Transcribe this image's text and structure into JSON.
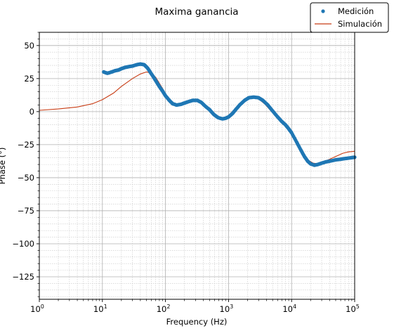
{
  "chart_data": {
    "type": "line",
    "title": "Maxima ganancia",
    "xlabel": "Frequency (Hz)",
    "ylabel": "Phase (°)",
    "xscale": "log",
    "xlim": [
      1,
      100000
    ],
    "ylim": [
      -142,
      60
    ],
    "yticks": [
      50,
      25,
      0,
      -25,
      -50,
      -75,
      -100,
      -125
    ],
    "ytick_labels": [
      "50",
      "25",
      "0",
      "−25",
      "−50",
      "−75",
      "−100",
      "−125"
    ],
    "xtick_labels": [
      {
        "base": "10",
        "exp": "0"
      },
      {
        "base": "10",
        "exp": "1"
      },
      {
        "base": "10",
        "exp": "2"
      },
      {
        "base": "10",
        "exp": "3"
      },
      {
        "base": "10",
        "exp": "4"
      },
      {
        "base": "10",
        "exp": "5"
      }
    ],
    "grid": true,
    "legend_position": "top-right",
    "series": [
      {
        "name": "Medición",
        "style": "markers",
        "color": "#1f77b4",
        "points": [
          [
            10.5,
            30.0
          ],
          [
            12,
            29.0
          ],
          [
            14,
            30.0
          ],
          [
            16,
            31.0
          ],
          [
            18,
            31.5
          ],
          [
            20,
            32.5
          ],
          [
            23,
            33.5
          ],
          [
            26,
            34.0
          ],
          [
            30,
            34.5
          ],
          [
            35,
            35.5
          ],
          [
            40,
            36.0
          ],
          [
            46,
            35.5
          ],
          [
            52,
            33.0
          ],
          [
            58,
            29.5
          ],
          [
            65,
            26.0
          ],
          [
            72,
            22.5
          ],
          [
            80,
            19.0
          ],
          [
            90,
            15.5
          ],
          [
            100,
            12.0
          ],
          [
            115,
            8.5
          ],
          [
            130,
            6.0
          ],
          [
            150,
            5.0
          ],
          [
            175,
            5.5
          ],
          [
            200,
            6.5
          ],
          [
            230,
            7.5
          ],
          [
            270,
            8.5
          ],
          [
            320,
            8.5
          ],
          [
            370,
            7.0
          ],
          [
            430,
            4.0
          ],
          [
            500,
            1.5
          ],
          [
            580,
            -2.0
          ],
          [
            680,
            -4.5
          ],
          [
            800,
            -5.5
          ],
          [
            900,
            -5.0
          ],
          [
            1000,
            -4.0
          ],
          [
            1150,
            -1.5
          ],
          [
            1300,
            1.5
          ],
          [
            1500,
            5.0
          ],
          [
            1800,
            8.5
          ],
          [
            2100,
            10.5
          ],
          [
            2500,
            11.0
          ],
          [
            3000,
            10.5
          ],
          [
            3500,
            8.5
          ],
          [
            4200,
            5.0
          ],
          [
            5000,
            0.5
          ],
          [
            6000,
            -4.0
          ],
          [
            7000,
            -7.5
          ],
          [
            8000,
            -10.0
          ],
          [
            9000,
            -13.0
          ],
          [
            10000,
            -16.0
          ],
          [
            12000,
            -23.0
          ],
          [
            14000,
            -29.0
          ],
          [
            16000,
            -34.0
          ],
          [
            18000,
            -37.5
          ],
          [
            20000,
            -39.5
          ],
          [
            23000,
            -40.5
          ],
          [
            26000,
            -40.0
          ],
          [
            30000,
            -39.0
          ],
          [
            35000,
            -38.0
          ],
          [
            40000,
            -37.5
          ],
          [
            50000,
            -36.5
          ],
          [
            60000,
            -36.0
          ],
          [
            70000,
            -35.5
          ],
          [
            85000,
            -35.0
          ],
          [
            100000,
            -34.5
          ]
        ]
      },
      {
        "name": "Simulación",
        "style": "line",
        "color": "#c83c14",
        "points": [
          [
            1,
            1.0
          ],
          [
            2,
            2.0
          ],
          [
            4,
            3.5
          ],
          [
            7,
            6.0
          ],
          [
            10,
            9.0
          ],
          [
            15,
            14.0
          ],
          [
            20,
            19.0
          ],
          [
            30,
            25.0
          ],
          [
            40,
            28.5
          ],
          [
            50,
            30.0
          ],
          [
            60,
            29.0
          ],
          [
            70,
            26.0
          ],
          [
            80,
            21.5
          ],
          [
            90,
            17.5
          ],
          [
            100,
            13.5
          ],
          [
            115,
            9.5
          ],
          [
            130,
            7.0
          ],
          [
            150,
            5.5
          ],
          [
            175,
            5.5
          ],
          [
            200,
            6.0
          ],
          [
            240,
            7.0
          ],
          [
            280,
            8.0
          ],
          [
            330,
            8.0
          ],
          [
            400,
            6.0
          ],
          [
            480,
            2.5
          ],
          [
            560,
            -1.0
          ],
          [
            660,
            -4.0
          ],
          [
            760,
            -5.0
          ],
          [
            850,
            -5.0
          ],
          [
            1000,
            -3.0
          ],
          [
            1200,
            1.0
          ],
          [
            1500,
            5.0
          ],
          [
            1800,
            8.5
          ],
          [
            2200,
            10.5
          ],
          [
            2700,
            10.5
          ],
          [
            3200,
            8.5
          ],
          [
            3800,
            5.5
          ],
          [
            4500,
            1.5
          ],
          [
            5500,
            -3.0
          ],
          [
            6500,
            -7.0
          ],
          [
            8000,
            -11.0
          ],
          [
            10000,
            -17.0
          ],
          [
            12000,
            -24.0
          ],
          [
            15000,
            -32.0
          ],
          [
            18000,
            -36.5
          ],
          [
            22000,
            -39.0
          ],
          [
            26000,
            -39.5
          ],
          [
            32000,
            -38.0
          ],
          [
            40000,
            -36.0
          ],
          [
            50000,
            -34.0
          ],
          [
            65000,
            -31.5
          ],
          [
            80000,
            -30.5
          ],
          [
            100000,
            -30.0
          ]
        ]
      }
    ]
  }
}
